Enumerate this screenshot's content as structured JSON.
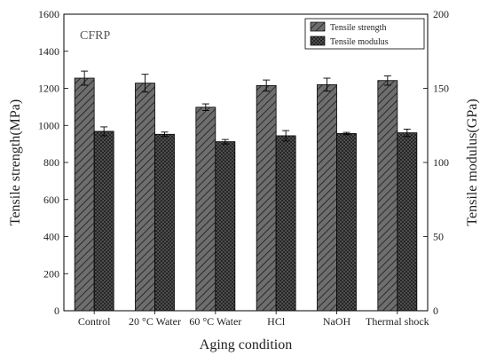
{
  "chart_data": {
    "type": "bar",
    "inset_label": "CFRP",
    "xlabel": "Aging condition",
    "ylabel_left": "Tensile strength(MPa)",
    "ylabel_right": "Tensile modulus(GPa)",
    "categories": [
      "Control",
      "20 °C Water",
      "60 °C Water",
      "HCl",
      "NaOH",
      "Thermal shock"
    ],
    "ylim_left": [
      0,
      1600
    ],
    "ylim_right": [
      0,
      200
    ],
    "yticks_left": [
      0,
      200,
      400,
      600,
      800,
      1000,
      1200,
      1400,
      1600
    ],
    "yticks_right": [
      0,
      50,
      100,
      150,
      200
    ],
    "legend_position": "top-right",
    "grid": false,
    "series": [
      {
        "name": "Tensile strength",
        "axis": "left",
        "pattern": "diagonal-hatch",
        "fill": "#555555",
        "values": [
          1255,
          1228,
          1098,
          1215,
          1220,
          1242
        ],
        "errors": [
          38,
          48,
          18,
          30,
          35,
          25
        ]
      },
      {
        "name": "Tensile modulus",
        "axis": "right",
        "pattern": "crosshatch",
        "fill": "#444444",
        "values": [
          121,
          119,
          114,
          118,
          119.5,
          120
        ],
        "errors": [
          3,
          1.5,
          1.5,
          3.5,
          0.8,
          2.5
        ]
      }
    ]
  }
}
